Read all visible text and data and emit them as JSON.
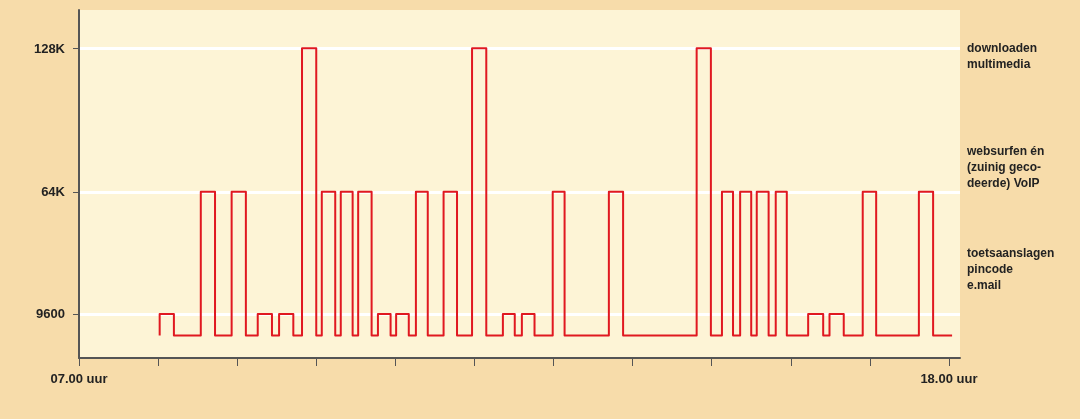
{
  "chart_data": {
    "type": "step",
    "color": "#e01820",
    "x": [
      8.02,
      8.02,
      8.2,
      8.54,
      8.72,
      8.93,
      9.11,
      9.26,
      9.44,
      9.53,
      9.71,
      9.82,
      10.0,
      10.07,
      10.24,
      10.31,
      10.46,
      10.53,
      10.7,
      10.78,
      10.94,
      11.01,
      11.17,
      11.26,
      11.41,
      11.61,
      11.78,
      11.97,
      12.15,
      12.36,
      12.51,
      12.6,
      12.76,
      12.99,
      13.14,
      13.7,
      13.88,
      14.81,
      14.99,
      15.13,
      15.27,
      15.36,
      15.5,
      15.57,
      15.72,
      15.81,
      15.95,
      16.22,
      16.41,
      16.49,
      16.67,
      16.91,
      17.08,
      17.62,
      17.8,
      18.04
    ],
    "values": [
      0,
      9600,
      0,
      64000,
      0,
      64000,
      0,
      9600,
      0,
      9600,
      0,
      128000,
      0,
      64000,
      0,
      64000,
      0,
      64000,
      0,
      9600,
      0,
      9600,
      0,
      64000,
      0,
      64000,
      0,
      128000,
      0,
      9600,
      0,
      9600,
      0,
      64000,
      0,
      64000,
      0,
      128000,
      0,
      64000,
      0,
      64000,
      0,
      64000,
      0,
      64000,
      0,
      9600,
      0,
      9600,
      0,
      64000,
      0,
      64000,
      0,
      0
    ],
    "xlim": [
      7,
      18.14
    ],
    "xticks": [
      {
        "value": 7,
        "label": "07.00 uur"
      },
      {
        "value": 8,
        "label": null
      },
      {
        "value": 9,
        "label": null
      },
      {
        "value": 10,
        "label": null
      },
      {
        "value": 11,
        "label": null
      },
      {
        "value": 12,
        "label": null
      },
      {
        "value": 13,
        "label": null
      },
      {
        "value": 14,
        "label": null
      },
      {
        "value": 15,
        "label": null
      },
      {
        "value": 16,
        "label": null
      },
      {
        "value": 17,
        "label": null
      },
      {
        "value": 18,
        "label": "18.00 uur"
      }
    ],
    "ylim": [
      -10000,
      145000
    ],
    "yticks": [
      9600,
      {
        "value": 64000,
        "label": "64K"
      },
      {
        "value": 128000,
        "label": "128K"
      }
    ],
    "grid": "y",
    "marker": "none",
    "line_style": "solid",
    "annotations": [
      "downloaden\nmultimedia",
      "websurfen én\n(zuinig geco-\ndeerde) VoIP",
      "toetsaanslagen\npincode\ne.mail"
    ]
  }
}
